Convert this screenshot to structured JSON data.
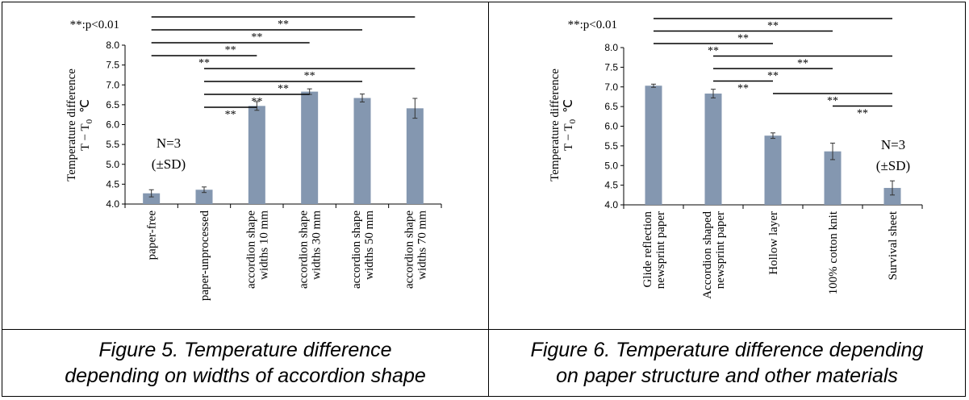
{
  "captions": {
    "fig5": {
      "line1": "Figure 5. Temperature difference",
      "line2": "depending on widths of accordion shape"
    },
    "fig6": {
      "line1": "Figure 6. Temperature difference depending",
      "line2": "on paper structure and other materials"
    }
  },
  "chart_data": [
    {
      "type": "bar",
      "ylabel_line1": "Temperature  difference",
      "ylabel_line2": "T − T",
      "ylabel_sub": "0",
      "ylabel_unit": "℃",
      "ylim": [
        4.0,
        8.0
      ],
      "ytick_step": 0.5,
      "bar_color": "#8497b0",
      "significance_label": "**:p<0.01",
      "sig_marker": "**",
      "note_n": "N=3",
      "note_sd": "(±SD)",
      "categories": [
        [
          "paper-free"
        ],
        [
          "paper-unprocessed"
        ],
        [
          "accordion shape",
          "widths 10 mm"
        ],
        [
          "accordion shape",
          "widths 30 mm"
        ],
        [
          "accordion shape",
          "widths 50 mm"
        ],
        [
          "accordion shape",
          "widths 70 mm"
        ]
      ],
      "values": [
        4.27,
        4.36,
        6.47,
        6.83,
        6.67,
        6.41
      ],
      "errors": [
        0.09,
        0.07,
        0.11,
        0.07,
        0.1,
        0.25
      ],
      "significance_pairs": [
        [
          0,
          5
        ],
        [
          0,
          4
        ],
        [
          0,
          3
        ],
        [
          0,
          2
        ],
        [
          1,
          5
        ],
        [
          1,
          4
        ],
        [
          1,
          3
        ],
        [
          1,
          2
        ]
      ]
    },
    {
      "type": "bar",
      "ylabel_line1": "Temperature  difference",
      "ylabel_line2": "T − T",
      "ylabel_sub": "0",
      "ylabel_unit": "℃",
      "ylim": [
        4.0,
        8.0
      ],
      "ytick_step": 0.5,
      "bar_color": "#8497b0",
      "significance_label": "**:p<0.01",
      "sig_marker": "**",
      "note_n": "N=3",
      "note_sd": "(±SD)",
      "categories": [
        [
          "Glide reflection",
          "newsprint paper"
        ],
        [
          "Accordion shaped",
          "newsprint paper"
        ],
        [
          "Hollow layer"
        ],
        [
          "100% cotton knit"
        ],
        [
          "Survival sheet"
        ]
      ],
      "values": [
        7.03,
        6.83,
        5.76,
        5.36,
        4.43
      ],
      "errors": [
        0.04,
        0.11,
        0.07,
        0.21,
        0.18
      ],
      "significance_pairs": [
        [
          0,
          4
        ],
        [
          0,
          3
        ],
        [
          0,
          2
        ],
        [
          1,
          4
        ],
        [
          1,
          3
        ],
        [
          1,
          2
        ],
        [
          2,
          4
        ],
        [
          3,
          4
        ]
      ]
    }
  ]
}
